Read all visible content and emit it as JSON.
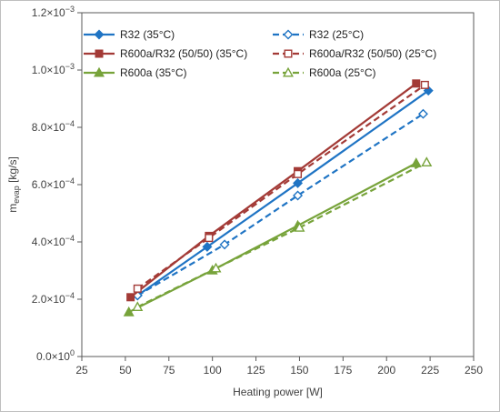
{
  "chart_data": {
    "type": "line",
    "xlabel": "Heating power [W]",
    "ylabel": {
      "base": "m",
      "subscript": "evap",
      "unit": " [kg/s]"
    },
    "xlim": [
      25,
      250
    ],
    "ylim": [
      0,
      0.0012
    ],
    "x_ticks": [
      "25",
      "50",
      "75",
      "100",
      "125",
      "150",
      "175",
      "200",
      "225",
      "250"
    ],
    "y_ticks": [
      {
        "mantissa": "0.0×10",
        "exp": "0"
      },
      {
        "mantissa": "2.0×10",
        "exp": "−4"
      },
      {
        "mantissa": "4.0×10",
        "exp": "−4"
      },
      {
        "mantissa": "6.0×10",
        "exp": "−4"
      },
      {
        "mantissa": "8.0×10",
        "exp": "−4"
      },
      {
        "mantissa": "1.0×10",
        "exp": "−3"
      },
      {
        "mantissa": "1.2×10",
        "exp": "−3"
      }
    ],
    "grid": false,
    "legend_position": "top",
    "series": [
      {
        "name": "R32 (35°C)",
        "color": "#1f74c4",
        "dash": "solid",
        "marker": "diamond",
        "filled": true,
        "points": [
          [
            57,
            0.000213
          ],
          [
            97,
            0.000383
          ],
          [
            149,
            0.000605
          ],
          [
            224,
            0.000928
          ]
        ]
      },
      {
        "name": "R32 (25°C)",
        "color": "#1f74c4",
        "dash": "dashed",
        "marker": "diamond",
        "filled": false,
        "points": [
          [
            57,
            0.000213
          ],
          [
            107,
            0.000391
          ],
          [
            149,
            0.000562
          ],
          [
            221,
            0.000847
          ]
        ]
      },
      {
        "name": "R600a/R32 (50/50) (35°C)",
        "color": "#a33a36",
        "dash": "solid",
        "marker": "square",
        "filled": true,
        "points": [
          [
            53,
            0.000207
          ],
          [
            98,
            0.000421
          ],
          [
            149,
            0.000647
          ],
          [
            217,
            0.000953
          ]
        ]
      },
      {
        "name": "R600a/R32 (50/50) (25°C)",
        "color": "#a33a36",
        "dash": "dashed",
        "marker": "square",
        "filled": false,
        "points": [
          [
            57,
            0.000237
          ],
          [
            98,
            0.000414
          ],
          [
            149,
            0.000637
          ],
          [
            222,
            0.000948
          ]
        ]
      },
      {
        "name": "R600a (35°C)",
        "color": "#77a33a",
        "dash": "solid",
        "marker": "triangle",
        "filled": true,
        "points": [
          [
            52,
            0.000155
          ],
          [
            100,
            0.000301
          ],
          [
            149,
            0.000457
          ],
          [
            217,
            0.000675
          ]
        ]
      },
      {
        "name": "R600a (25°C)",
        "color": "#77a33a",
        "dash": "dashed",
        "marker": "triangle",
        "filled": false,
        "points": [
          [
            57,
            0.000173
          ],
          [
            102,
            0.000308
          ],
          [
            150,
            0.00045
          ],
          [
            223,
            0.000678
          ]
        ]
      }
    ]
  }
}
